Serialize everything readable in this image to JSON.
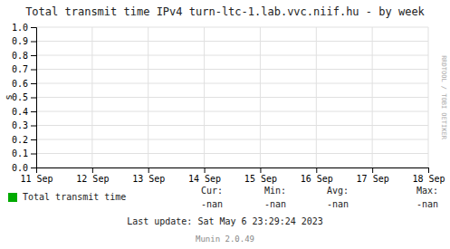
{
  "chart_data": {
    "type": "line",
    "title": "Total transmit time IPv4 turn-ltc-1.lab.vvc.niif.hu - by week",
    "y_label": "s",
    "categories": [
      "11 Sep",
      "12 Sep",
      "13 Sep",
      "14 Sep",
      "15 Sep",
      "16 Sep",
      "17 Sep",
      "18 Sep"
    ],
    "series": [
      {
        "name": "Total transmit time",
        "color": "#00aa00",
        "values": [
          null,
          null,
          null,
          null,
          null,
          null,
          null,
          null
        ]
      }
    ],
    "ylim": [
      0.0,
      1.0
    ],
    "yticks": [
      {
        "value": 0.0,
        "label": "0.0"
      },
      0.1,
      0.2,
      0.3,
      0.4,
      0.5,
      0.6,
      0.7,
      0.8,
      0.9,
      {
        "value": 1.0,
        "label": "1.0"
      }
    ],
    "grid": true,
    "legend": "bottom",
    "annotations": [
      "Cur:",
      "Min:",
      "Avg:",
      "Max:",
      "-nan",
      "-nan",
      "-nan",
      "-nan",
      "Last update: Sat May  6 23:29:24 2023",
      "Munin 2.0.49",
      "RRDTOOL / TOBI OETIKER"
    ]
  }
}
